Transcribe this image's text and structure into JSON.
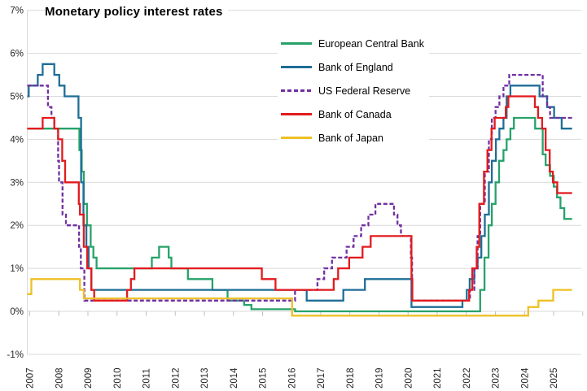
{
  "chart_data": {
    "type": "line",
    "title": "Monetary policy interest rates",
    "grid": true,
    "legend_position": "top-right-inside",
    "y_axis": {
      "min": -1,
      "max": 7,
      "unit": "%",
      "tick_values": [
        7,
        6,
        5,
        4,
        3,
        2,
        1,
        0,
        -1
      ],
      "tick_labels": [
        "7%",
        "6%",
        "5%",
        "4%",
        "3%",
        "2%",
        "1%",
        "0%",
        "-1%"
      ]
    },
    "x_axis": {
      "start_year": 2007,
      "end_year_fraction": 2025.72,
      "tick_labels": [
        "2007",
        "2008",
        "2009",
        "2010",
        "2011",
        "2012",
        "2013",
        "2014",
        "2015",
        "2016",
        "2017",
        "2018",
        "2019",
        "2020",
        "2021",
        "2022",
        "2023",
        "2024",
        "2025"
      ]
    },
    "series": [
      {
        "name": "European Central Bank",
        "color": "#26A269",
        "dash": "solid",
        "points": [
          [
            2007,
            4.25
          ],
          [
            2008.79,
            3.75
          ],
          [
            2008.87,
            3.25
          ],
          [
            2008.94,
            2.5
          ],
          [
            2009.05,
            2
          ],
          [
            2009.18,
            1.5
          ],
          [
            2009.27,
            1.25
          ],
          [
            2009.38,
            1
          ],
          [
            2011.28,
            1.25
          ],
          [
            2011.53,
            1.5
          ],
          [
            2011.86,
            1.25
          ],
          [
            2011.95,
            1
          ],
          [
            2012.52,
            0.75
          ],
          [
            2013.36,
            0.5
          ],
          [
            2013.88,
            0.25
          ],
          [
            2014.45,
            0.15
          ],
          [
            2014.7,
            0.05
          ],
          [
            2016.2,
            0
          ],
          [
            2022.56,
            0.5
          ],
          [
            2022.71,
            1.25
          ],
          [
            2022.85,
            2
          ],
          [
            2022.96,
            2.5
          ],
          [
            2023.09,
            3
          ],
          [
            2023.21,
            3.5
          ],
          [
            2023.36,
            3.75
          ],
          [
            2023.47,
            4
          ],
          [
            2023.6,
            4.25
          ],
          [
            2023.72,
            4.5
          ],
          [
            2024.45,
            4.25
          ],
          [
            2024.71,
            3.65
          ],
          [
            2024.81,
            3.4
          ],
          [
            2024.96,
            3.15
          ],
          [
            2025.09,
            2.9
          ],
          [
            2025.2,
            2.65
          ],
          [
            2025.32,
            2.4
          ],
          [
            2025.45,
            2.15
          ]
        ]
      },
      {
        "name": "Bank of England",
        "color": "#1E6E96",
        "dash": "solid",
        "points": [
          [
            2007,
            5
          ],
          [
            2007.05,
            5.25
          ],
          [
            2007.36,
            5.5
          ],
          [
            2007.53,
            5.75
          ],
          [
            2007.93,
            5.5
          ],
          [
            2008.1,
            5.25
          ],
          [
            2008.28,
            5
          ],
          [
            2008.76,
            4.5
          ],
          [
            2008.85,
            3
          ],
          [
            2008.93,
            2
          ],
          [
            2009.03,
            1.5
          ],
          [
            2009.11,
            1
          ],
          [
            2009.2,
            0.5
          ],
          [
            2016.6,
            0.25
          ],
          [
            2017.86,
            0.5
          ],
          [
            2018.6,
            0.75
          ],
          [
            2020.2,
            0.1
          ],
          [
            2021.95,
            0.25
          ],
          [
            2022.1,
            0.5
          ],
          [
            2022.2,
            0.75
          ],
          [
            2022.36,
            1
          ],
          [
            2022.47,
            1.25
          ],
          [
            2022.6,
            1.75
          ],
          [
            2022.72,
            2.25
          ],
          [
            2022.86,
            3
          ],
          [
            2022.96,
            3.5
          ],
          [
            2023.1,
            4
          ],
          [
            2023.22,
            4.25
          ],
          [
            2023.36,
            4.5
          ],
          [
            2023.47,
            5
          ],
          [
            2023.6,
            5.25
          ],
          [
            2024.6,
            5
          ],
          [
            2024.86,
            4.75
          ],
          [
            2025.1,
            4.5
          ],
          [
            2025.36,
            4.25
          ]
        ]
      },
      {
        "name": "US Federal Reserve",
        "color": "#7030A0",
        "dash": "dashed",
        "points": [
          [
            2007,
            5.25
          ],
          [
            2007.71,
            4.75
          ],
          [
            2007.83,
            4.5
          ],
          [
            2007.93,
            4.25
          ],
          [
            2008.06,
            3.5
          ],
          [
            2008.09,
            3
          ],
          [
            2008.21,
            2.25
          ],
          [
            2008.33,
            2
          ],
          [
            2008.78,
            1.5
          ],
          [
            2008.84,
            1
          ],
          [
            2008.96,
            0.25
          ],
          [
            2016.2,
            0.5
          ],
          [
            2016.97,
            0.75
          ],
          [
            2017.2,
            1
          ],
          [
            2017.47,
            1.25
          ],
          [
            2017.97,
            1.5
          ],
          [
            2018.21,
            1.75
          ],
          [
            2018.47,
            2
          ],
          [
            2018.72,
            2.25
          ],
          [
            2018.96,
            2.5
          ],
          [
            2019.6,
            2.25
          ],
          [
            2019.72,
            2
          ],
          [
            2019.84,
            1.75
          ],
          [
            2020.18,
            1.25
          ],
          [
            2020.22,
            0.25
          ],
          [
            2022.21,
            0.5
          ],
          [
            2022.36,
            1
          ],
          [
            2022.47,
            1.75
          ],
          [
            2022.56,
            2.5
          ],
          [
            2022.72,
            3.25
          ],
          [
            2022.86,
            4
          ],
          [
            2022.96,
            4.5
          ],
          [
            2023.09,
            4.75
          ],
          [
            2023.22,
            5
          ],
          [
            2023.36,
            5.25
          ],
          [
            2023.56,
            5.5
          ],
          [
            2024.71,
            5
          ],
          [
            2024.86,
            4.75
          ],
          [
            2024.96,
            4.5
          ]
        ]
      },
      {
        "name": "Bank of Canada",
        "color": "#E21A1D",
        "dash": "solid",
        "points": [
          [
            2007,
            4.25
          ],
          [
            2007.53,
            4.5
          ],
          [
            2007.93,
            4.25
          ],
          [
            2008.06,
            4
          ],
          [
            2008.2,
            3.5
          ],
          [
            2008.3,
            3
          ],
          [
            2008.77,
            2.5
          ],
          [
            2008.81,
            2.25
          ],
          [
            2008.94,
            1.5
          ],
          [
            2009.06,
            1
          ],
          [
            2009.2,
            0.5
          ],
          [
            2009.3,
            0.25
          ],
          [
            2010.43,
            0.5
          ],
          [
            2010.56,
            0.75
          ],
          [
            2010.68,
            1
          ],
          [
            2015.06,
            0.75
          ],
          [
            2015.53,
            0.5
          ],
          [
            2017.53,
            0.75
          ],
          [
            2017.68,
            1
          ],
          [
            2018.06,
            1.25
          ],
          [
            2018.52,
            1.5
          ],
          [
            2018.8,
            1.75
          ],
          [
            2020.2,
            0.75
          ],
          [
            2020.23,
            0.25
          ],
          [
            2022.18,
            0.5
          ],
          [
            2022.29,
            1
          ],
          [
            2022.44,
            1.5
          ],
          [
            2022.53,
            2.5
          ],
          [
            2022.69,
            3.25
          ],
          [
            2022.81,
            3.75
          ],
          [
            2022.95,
            4.25
          ],
          [
            2023.06,
            4.5
          ],
          [
            2023.44,
            4.75
          ],
          [
            2023.53,
            5
          ],
          [
            2024.44,
            4.75
          ],
          [
            2024.55,
            4.5
          ],
          [
            2024.69,
            4.25
          ],
          [
            2024.81,
            3.75
          ],
          [
            2024.95,
            3.25
          ],
          [
            2025.06,
            3
          ],
          [
            2025.21,
            2.75
          ]
        ]
      },
      {
        "name": "Bank of Japan",
        "color": "#EDC025",
        "dash": "solid",
        "points": [
          [
            2007,
            0.4
          ],
          [
            2007.14,
            0.75
          ],
          [
            2008.81,
            0.5
          ],
          [
            2008.94,
            0.3
          ],
          [
            2016.1,
            -0.1
          ],
          [
            2024.21,
            0.1
          ],
          [
            2024.56,
            0.25
          ],
          [
            2025.07,
            0.5
          ]
        ]
      }
    ]
  },
  "style": {
    "gridline_color": "#D9D9D9",
    "tick_color": "#BFBFBF",
    "label_color": "#262626",
    "background": "#FFFFFF"
  }
}
